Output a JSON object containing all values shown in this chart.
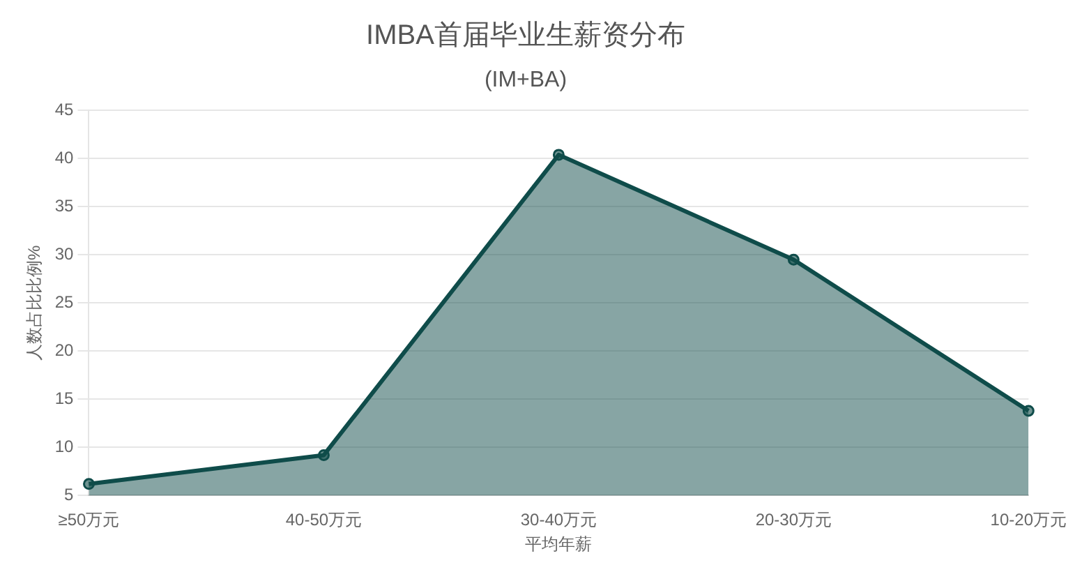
{
  "chart_data": {
    "type": "area",
    "title": "IMBA首届毕业生薪资分布",
    "subtitle": "(IM+BA)",
    "xlabel": "平均年薪",
    "ylabel": "人数占比比例%",
    "categories": [
      "≥50万元",
      "40-50万元",
      "30-40万元",
      "20-30万元",
      "10-20万元"
    ],
    "series": [
      {
        "color": "#0f4c4a",
        "values": [
          6.2,
          9.2,
          40.4,
          29.5,
          13.8
        ]
      }
    ],
    "ylim": [
      5,
      45
    ],
    "yticks": [
      5,
      10,
      15,
      20,
      25,
      30,
      35,
      40,
      45
    ],
    "grid": "y",
    "marker": "circle",
    "legend": false
  }
}
